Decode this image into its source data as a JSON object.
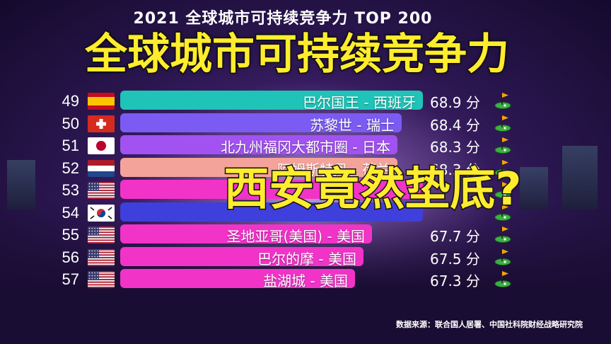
{
  "header": {
    "top_title": "2021 全球城市可持续竞争力 TOP 200",
    "main_title": "全球城市可持续竞争力",
    "overlay": "西安竟然垫底?",
    "source": "数据来源：联合国人居署、中国社科院财经战略研究院"
  },
  "chart_data": {
    "type": "bar",
    "orientation": "horizontal",
    "unit": "分",
    "ranks": [
      49,
      50,
      51,
      52,
      53,
      54,
      55,
      56,
      57
    ],
    "categories": [
      "巴尔国王 - 西班牙",
      "苏黎世 - 瑞士",
      "北九州福冈大都市圈 - 日本",
      "阿姆斯特丹 - 荷兰",
      "",
      "",
      "圣地亚哥(美国) - 美国",
      "巴尔的摩 - 美国",
      "盐湖城 - 美国"
    ],
    "values": [
      68.9,
      68.4,
      68.3,
      68.3,
      null,
      null,
      67.7,
      67.5,
      67.3
    ],
    "value_labels": [
      "68.9 分",
      "68.4 分",
      "68.3 分",
      "68.3 分",
      "",
      "",
      "67.7 分",
      "67.5 分",
      "67.3 分"
    ],
    "countries": [
      "spain",
      "switzerland",
      "japan",
      "netherlands",
      "usa",
      "korea",
      "usa",
      "usa",
      "usa"
    ],
    "bar_colors": [
      "#1fc3b7",
      "#7b5bf2",
      "#a152f0",
      "#f4a39a",
      "#f233c8",
      "#3f3fdc",
      "#f233c8",
      "#f233c8",
      "#f233c8"
    ],
    "icon": "golf-flag-icon"
  }
}
